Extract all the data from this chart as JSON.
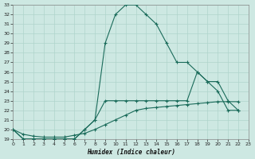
{
  "xlabel": "Humidex (Indice chaleur)",
  "bg_color": "#cde8e2",
  "grid_color": "#afd4cc",
  "line_color": "#1a6b5a",
  "xlim": [
    0,
    23
  ],
  "ylim": [
    19,
    33
  ],
  "ytick_values": [
    19,
    20,
    21,
    22,
    23,
    24,
    25,
    26,
    27,
    28,
    29,
    30,
    31,
    32,
    33
  ],
  "xtick_values": [
    0,
    1,
    2,
    3,
    4,
    5,
    6,
    7,
    8,
    9,
    10,
    11,
    12,
    13,
    14,
    15,
    16,
    17,
    18,
    19,
    20,
    21,
    22,
    23
  ],
  "series": [
    {
      "x": [
        0,
        1,
        2,
        3,
        4,
        5,
        6,
        7,
        8,
        9,
        10,
        11,
        12,
        13,
        14,
        15,
        16,
        17,
        18,
        19,
        20,
        21,
        22
      ],
      "y": [
        20,
        19,
        19,
        19,
        19,
        19,
        19,
        20,
        21,
        29,
        32,
        33,
        33,
        32,
        31,
        29,
        27,
        27,
        26,
        25,
        24,
        22,
        22
      ]
    },
    {
      "x": [
        0,
        1,
        2,
        3,
        4,
        5,
        6,
        7,
        8,
        9,
        10,
        11,
        12,
        13,
        14,
        15,
        16,
        17,
        18,
        19,
        20,
        21,
        22
      ],
      "y": [
        20,
        19,
        19,
        19,
        19,
        19,
        19,
        20,
        21,
        23,
        23,
        23,
        23,
        23,
        23,
        23,
        23,
        23,
        26,
        25,
        25,
        23,
        22
      ]
    },
    {
      "x": [
        0,
        1,
        2,
        3,
        4,
        5,
        6,
        7,
        8,
        9,
        10,
        11,
        12,
        13,
        14,
        15,
        16,
        17,
        18,
        19,
        20,
        21,
        22
      ],
      "y": [
        20,
        19.5,
        19.3,
        19.2,
        19.2,
        19.2,
        19.4,
        19.6,
        20.0,
        20.5,
        21.0,
        21.5,
        22.0,
        22.2,
        22.3,
        22.4,
        22.5,
        22.6,
        22.7,
        22.8,
        22.9,
        22.9,
        22.9
      ]
    }
  ]
}
